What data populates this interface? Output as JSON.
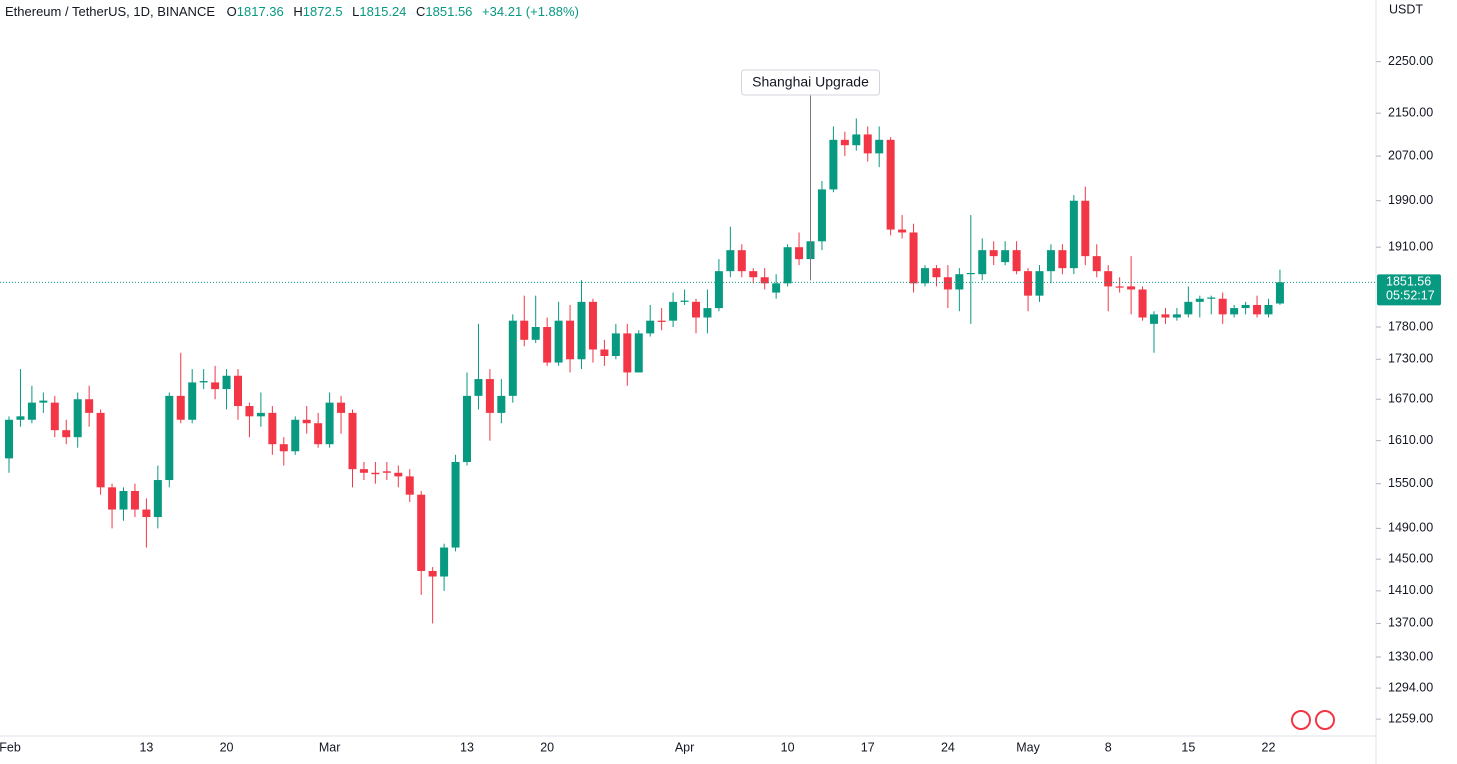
{
  "header": {
    "symbol": "Ethereum / TetherUS, 1D, BINANCE",
    "ohlc_labels": [
      "O",
      "H",
      "L",
      "C"
    ],
    "change": "+34.21 (+1.88%)",
    "unit": "USDT",
    "countdown": "05:52:17"
  },
  "chart_data": {
    "type": "candlestick",
    "log_scale": true,
    "up_color": "#089981",
    "down_color": "#f23645",
    "categories": [
      "Feb 1",
      "Feb 2",
      "Feb 3",
      "Feb 4",
      "Feb 5",
      "Feb 6",
      "Feb 7",
      "Feb 8",
      "Feb 9",
      "Feb 10",
      "Feb 11",
      "Feb 12",
      "Feb 13",
      "Feb 14",
      "Feb 15",
      "Feb 16",
      "Feb 17",
      "Feb 18",
      "Feb 19",
      "Feb 20",
      "Feb 21",
      "Feb 22",
      "Feb 23",
      "Feb 24",
      "Feb 25",
      "Feb 26",
      "Feb 27",
      "Feb 28",
      "Mar 1",
      "Mar 2",
      "Mar 3",
      "Mar 4",
      "Mar 5",
      "Mar 6",
      "Mar 7",
      "Mar 8",
      "Mar 9",
      "Mar 10",
      "Mar 11",
      "Mar 12",
      "Mar 13",
      "Mar 14",
      "Mar 15",
      "Mar 16",
      "Mar 17",
      "Mar 18",
      "Mar 19",
      "Mar 20",
      "Mar 21",
      "Mar 22",
      "Mar 23",
      "Mar 24",
      "Mar 25",
      "Mar 26",
      "Mar 27",
      "Mar 28",
      "Mar 29",
      "Mar 30",
      "Mar 31",
      "Apr 1",
      "Apr 2",
      "Apr 3",
      "Apr 4",
      "Apr 5",
      "Apr 6",
      "Apr 7",
      "Apr 8",
      "Apr 9",
      "Apr 10",
      "Apr 11",
      "Apr 12",
      "Apr 13",
      "Apr 14",
      "Apr 15",
      "Apr 16",
      "Apr 17",
      "Apr 18",
      "Apr 19",
      "Apr 20",
      "Apr 21",
      "Apr 22",
      "Apr 23",
      "Apr 24",
      "Apr 25",
      "Apr 26",
      "Apr 27",
      "Apr 28",
      "Apr 29",
      "Apr 30",
      "May 1",
      "May 2",
      "May 3",
      "May 4",
      "May 5",
      "May 6",
      "May 7",
      "May 8",
      "May 9",
      "May 10",
      "May 11",
      "May 12",
      "May 13",
      "May 14",
      "May 15",
      "May 16",
      "May 17",
      "May 18",
      "May 19",
      "May 20",
      "May 21",
      "May 22",
      "May 23"
    ],
    "open": [
      1585,
      1640,
      1640,
      1665,
      1665,
      1625,
      1615,
      1670,
      1650,
      1545,
      1515,
      1540,
      1515,
      1505,
      1555,
      1675,
      1640,
      1695,
      1695,
      1685,
      1705,
      1660,
      1645,
      1650,
      1605,
      1595,
      1640,
      1635,
      1605,
      1665,
      1650,
      1570,
      1565,
      1567,
      1565,
      1560,
      1535,
      1435,
      1428,
      1465,
      1580,
      1675,
      1700,
      1650,
      1675,
      1790,
      1760,
      1780,
      1725,
      1790,
      1730,
      1820,
      1745,
      1735,
      1770,
      1710,
      1770,
      1790,
      1790,
      1820,
      1820,
      1795,
      1810,
      1870,
      1905,
      1870,
      1860,
      1835,
      1850,
      1910,
      1890,
      1920,
      2010,
      2100,
      2090,
      2110,
      2075,
      2100,
      1940,
      1935,
      1850,
      1875,
      1860,
      1840,
      1865,
      1865,
      1905,
      1885,
      1905,
      1870,
      1830,
      1870,
      1905,
      1875,
      1990,
      1895,
      1870,
      1845,
      1845,
      1840,
      1785,
      1800,
      1795,
      1800,
      1820,
      1825,
      1825,
      1800,
      1810,
      1815,
      1800,
      1817.36
    ],
    "high": [
      1645,
      1715,
      1690,
      1680,
      1675,
      1640,
      1680,
      1690,
      1655,
      1550,
      1545,
      1550,
      1530,
      1575,
      1680,
      1740,
      1715,
      1715,
      1720,
      1715,
      1715,
      1665,
      1680,
      1660,
      1615,
      1645,
      1660,
      1650,
      1680,
      1675,
      1655,
      1580,
      1580,
      1580,
      1575,
      1570,
      1540,
      1440,
      1470,
      1590,
      1710,
      1785,
      1715,
      1700,
      1800,
      1830,
      1830,
      1795,
      1820,
      1815,
      1855,
      1825,
      1760,
      1785,
      1785,
      1775,
      1815,
      1810,
      1835,
      1840,
      1825,
      1840,
      1890,
      1945,
      1915,
      1875,
      1875,
      1865,
      1915,
      1935,
      1935,
      2025,
      2125,
      2115,
      2140,
      2125,
      2125,
      2105,
      1965,
      1950,
      1880,
      1880,
      1880,
      1875,
      1965,
      1925,
      1920,
      1920,
      1920,
      1875,
      1880,
      1915,
      1915,
      2000,
      2015,
      1915,
      1880,
      1860,
      1895,
      1845,
      1805,
      1810,
      1810,
      1845,
      1830,
      1830,
      1835,
      1815,
      1820,
      1830,
      1825,
      1872.5
    ],
    "low": [
      1565,
      1630,
      1635,
      1650,
      1615,
      1605,
      1600,
      1630,
      1535,
      1490,
      1500,
      1505,
      1465,
      1490,
      1545,
      1635,
      1635,
      1685,
      1670,
      1655,
      1640,
      1615,
      1630,
      1590,
      1575,
      1590,
      1620,
      1600,
      1600,
      1620,
      1545,
      1555,
      1550,
      1555,
      1545,
      1525,
      1405,
      1370,
      1410,
      1460,
      1575,
      1655,
      1610,
      1635,
      1665,
      1750,
      1755,
      1720,
      1720,
      1710,
      1715,
      1725,
      1720,
      1730,
      1690,
      1710,
      1765,
      1775,
      1780,
      1815,
      1770,
      1770,
      1805,
      1860,
      1860,
      1850,
      1840,
      1825,
      1845,
      1880,
      1855,
      1905,
      2005,
      2070,
      2080,
      2060,
      2050,
      1930,
      1925,
      1835,
      1845,
      1845,
      1810,
      1805,
      1785,
      1855,
      1880,
      1880,
      1865,
      1805,
      1820,
      1850,
      1865,
      1865,
      1880,
      1860,
      1805,
      1835,
      1800,
      1790,
      1740,
      1785,
      1790,
      1795,
      1795,
      1800,
      1785,
      1795,
      1800,
      1795,
      1795,
      1815.24
    ],
    "close": [
      1640,
      1645,
      1665,
      1668,
      1625,
      1615,
      1670,
      1650,
      1545,
      1515,
      1540,
      1515,
      1505,
      1555,
      1675,
      1640,
      1695,
      1697,
      1685,
      1705,
      1660,
      1645,
      1650,
      1605,
      1595,
      1640,
      1635,
      1605,
      1665,
      1650,
      1570,
      1565,
      1563,
      1565,
      1560,
      1535,
      1435,
      1428,
      1465,
      1580,
      1675,
      1700,
      1650,
      1675,
      1790,
      1760,
      1780,
      1725,
      1790,
      1730,
      1820,
      1745,
      1735,
      1770,
      1710,
      1770,
      1790,
      1788,
      1820,
      1822,
      1795,
      1810,
      1870,
      1905,
      1870,
      1860,
      1850,
      1850,
      1910,
      1890,
      1920,
      2010,
      2100,
      2090,
      2110,
      2075,
      2100,
      1940,
      1935,
      1850,
      1875,
      1860,
      1840,
      1865,
      1867,
      1905,
      1895,
      1905,
      1870,
      1830,
      1870,
      1905,
      1875,
      1990,
      1895,
      1870,
      1845,
      1843,
      1840,
      1795,
      1800,
      1795,
      1800,
      1820,
      1825,
      1827,
      1800,
      1810,
      1815,
      1800,
      1815,
      1851.56
    ],
    "ylim": [
      1236,
      2376
    ],
    "yticks": [
      {
        "value": 2250,
        "label": "2250.00"
      },
      {
        "value": 2150,
        "label": "2150.00"
      },
      {
        "value": 2070,
        "label": "2070.00"
      },
      {
        "value": 1990,
        "label": "1990.00"
      },
      {
        "value": 1910,
        "label": "1910.00"
      },
      {
        "value": 1780,
        "label": "1780.00"
      },
      {
        "value": 1730,
        "label": "1730.00"
      },
      {
        "value": 1670,
        "label": "1670.00"
      },
      {
        "value": 1610,
        "label": "1610.00"
      },
      {
        "value": 1550,
        "label": "1550.00"
      },
      {
        "value": 1490,
        "label": "1490.00"
      },
      {
        "value": 1450,
        "label": "1450.00"
      },
      {
        "value": 1410,
        "label": "1410.00"
      },
      {
        "value": 1370,
        "label": "1370.00"
      },
      {
        "value": 1330,
        "label": "1330.00"
      },
      {
        "value": 1294,
        "label": "1294.00"
      },
      {
        "value": 1259,
        "label": "1259.00"
      }
    ],
    "xticks": [
      {
        "value": "Feb 1",
        "label": "Feb"
      },
      {
        "value": "Feb 13",
        "label": "13"
      },
      {
        "value": "Feb 20",
        "label": "20"
      },
      {
        "value": "Mar 1",
        "label": "Mar"
      },
      {
        "value": "Mar 13",
        "label": "13"
      },
      {
        "value": "Mar 20",
        "label": "20"
      },
      {
        "value": "Apr 1",
        "label": "Apr"
      },
      {
        "value": "Apr 10",
        "label": "10"
      },
      {
        "value": "Apr 17",
        "label": "17"
      },
      {
        "value": "Apr 24",
        "label": "24"
      },
      {
        "value": "May 1",
        "label": "May"
      },
      {
        "value": "May 8",
        "label": "8"
      },
      {
        "value": "May 15",
        "label": "15"
      },
      {
        "value": "May 22",
        "label": "22"
      }
    ],
    "annotations": [
      {
        "x": "Apr 12",
        "text": "Shanghai Upgrade"
      }
    ]
  }
}
